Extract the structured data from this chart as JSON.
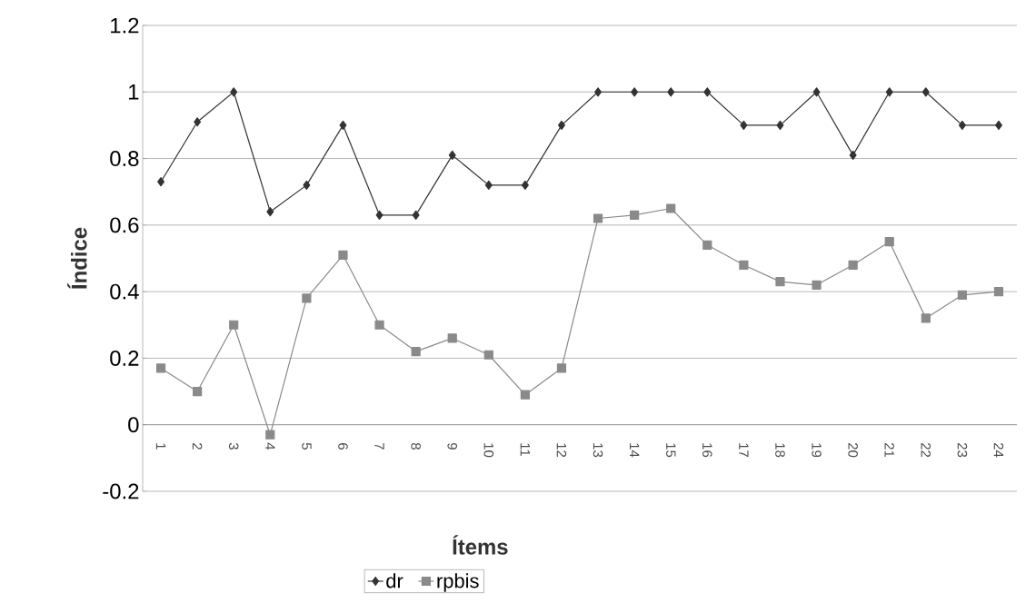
{
  "chart_data": {
    "type": "line",
    "xlabel": "Ítems",
    "ylabel": "Índice",
    "categories": [
      "1",
      "2",
      "3",
      "4",
      "5",
      "6",
      "7",
      "8",
      "9",
      "10",
      "11",
      "12",
      "13",
      "14",
      "15",
      "16",
      "17",
      "18",
      "19",
      "20",
      "21",
      "22",
      "23",
      "24"
    ],
    "series": [
      {
        "name": "dr",
        "color": "#333333",
        "marker": "diamond",
        "values": [
          0.73,
          0.91,
          1.0,
          0.64,
          0.72,
          0.9,
          0.63,
          0.63,
          0.81,
          0.72,
          0.72,
          0.9,
          1.0,
          1.0,
          1.0,
          1.0,
          0.9,
          0.9,
          1.0,
          0.81,
          1.0,
          1.0,
          0.9,
          0.9
        ]
      },
      {
        "name": "rpbis",
        "color": "#8a8a8a",
        "marker": "square",
        "values": [
          0.17,
          0.1,
          0.3,
          -0.03,
          0.38,
          0.51,
          0.3,
          0.22,
          0.26,
          0.21,
          0.09,
          0.17,
          0.62,
          0.63,
          0.65,
          0.54,
          0.48,
          0.43,
          0.42,
          0.48,
          0.55,
          0.32,
          0.39,
          0.4
        ]
      }
    ],
    "ylim": [
      -0.2,
      1.2
    ],
    "yticks": [
      -0.2,
      0,
      0.2,
      0.4,
      0.6,
      0.8,
      1,
      1.2
    ],
    "grid": "y",
    "legend": "bottom"
  }
}
